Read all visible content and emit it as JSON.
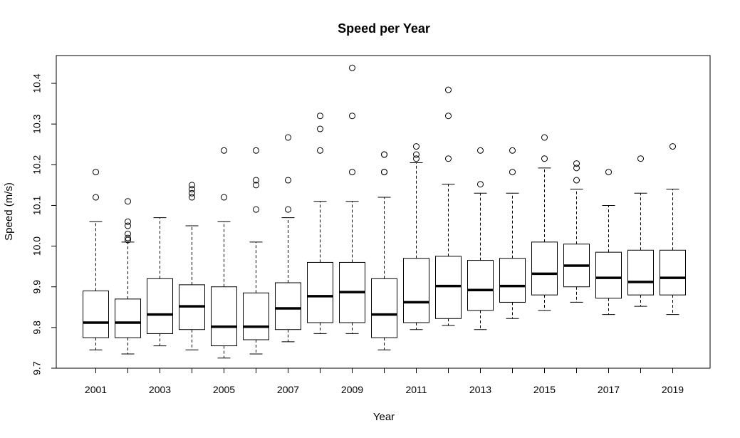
{
  "chart_data": {
    "type": "boxplot",
    "title": "Speed per Year",
    "xlabel": "Year",
    "ylabel": "Speed (m/s)",
    "ylim": [
      9.7,
      10.45
    ],
    "yticks": [
      "9.7",
      "9.8",
      "9.9",
      "10.0",
      "10.1",
      "10.2",
      "10.3",
      "10.4"
    ],
    "categories": [
      "2001",
      "2002",
      "2003",
      "2004",
      "2005",
      "2006",
      "2007",
      "2008",
      "2009",
      "2010",
      "2011",
      "2012",
      "2013",
      "2014",
      "2015",
      "2016",
      "2017",
      "2018",
      "2019"
    ],
    "xtick_labels_shown": [
      "2001",
      "2003",
      "2005",
      "2007",
      "2009",
      "2011",
      "2013",
      "2015",
      "2017",
      "2019"
    ],
    "grid": false,
    "legend": "none",
    "boxes": [
      {
        "year": "2001",
        "whisker_low": 9.745,
        "q1": 9.775,
        "median": 9.812,
        "q3": 9.89,
        "whisker_high": 10.06,
        "outliers": [
          10.12,
          10.182
        ]
      },
      {
        "year": "2002",
        "whisker_low": 9.735,
        "q1": 9.775,
        "median": 9.812,
        "q3": 9.87,
        "whisker_high": 10.01,
        "outliers": [
          10.015,
          10.02,
          10.03,
          10.05,
          10.06,
          10.11
        ]
      },
      {
        "year": "2003",
        "whisker_low": 9.755,
        "q1": 9.785,
        "median": 9.832,
        "q3": 9.92,
        "whisker_high": 10.07,
        "outliers": []
      },
      {
        "year": "2004",
        "whisker_low": 9.745,
        "q1": 9.795,
        "median": 9.852,
        "q3": 9.905,
        "whisker_high": 10.05,
        "outliers": [
          10.12,
          10.13,
          10.14,
          10.15
        ]
      },
      {
        "year": "2005",
        "whisker_low": 9.725,
        "q1": 9.755,
        "median": 9.802,
        "q3": 9.9,
        "whisker_high": 10.06,
        "outliers": [
          10.12,
          10.235
        ]
      },
      {
        "year": "2006",
        "whisker_low": 9.735,
        "q1": 9.77,
        "median": 9.802,
        "q3": 9.885,
        "whisker_high": 10.01,
        "outliers": [
          10.09,
          10.15,
          10.162,
          10.235
        ]
      },
      {
        "year": "2007",
        "whisker_low": 9.765,
        "q1": 9.795,
        "median": 9.847,
        "q3": 9.91,
        "whisker_high": 10.07,
        "outliers": [
          10.09,
          10.162,
          10.267
        ]
      },
      {
        "year": "2008",
        "whisker_low": 9.785,
        "q1": 9.812,
        "median": 9.877,
        "q3": 9.96,
        "whisker_high": 10.11,
        "outliers": [
          10.235,
          10.288,
          10.32
        ]
      },
      {
        "year": "2009",
        "whisker_low": 9.785,
        "q1": 9.812,
        "median": 9.887,
        "q3": 9.96,
        "whisker_high": 10.11,
        "outliers": [
          10.182,
          10.32,
          10.438
        ]
      },
      {
        "year": "2010",
        "whisker_low": 9.745,
        "q1": 9.775,
        "median": 9.832,
        "q3": 9.92,
        "whisker_high": 10.12,
        "outliers": [
          10.182,
          10.182,
          10.225,
          10.225
        ]
      },
      {
        "year": "2011",
        "whisker_low": 9.795,
        "q1": 9.812,
        "median": 9.862,
        "q3": 9.97,
        "whisker_high": 10.205,
        "outliers": [
          10.215,
          10.225,
          10.245
        ]
      },
      {
        "year": "2012",
        "whisker_low": 9.805,
        "q1": 9.822,
        "median": 9.902,
        "q3": 9.975,
        "whisker_high": 10.152,
        "outliers": [
          10.215,
          10.32,
          10.384
        ]
      },
      {
        "year": "2013",
        "whisker_low": 9.795,
        "q1": 9.842,
        "median": 9.892,
        "q3": 9.965,
        "whisker_high": 10.13,
        "outliers": [
          10.152,
          10.235
        ]
      },
      {
        "year": "2014",
        "whisker_low": 9.822,
        "q1": 9.862,
        "median": 9.902,
        "q3": 9.97,
        "whisker_high": 10.13,
        "outliers": [
          10.182,
          10.235
        ]
      },
      {
        "year": "2015",
        "whisker_low": 9.842,
        "q1": 9.88,
        "median": 9.932,
        "q3": 10.01,
        "whisker_high": 10.192,
        "outliers": [
          10.215,
          10.267
        ]
      },
      {
        "year": "2016",
        "whisker_low": 9.862,
        "q1": 9.9,
        "median": 9.952,
        "q3": 10.005,
        "whisker_high": 10.14,
        "outliers": [
          10.162,
          10.192,
          10.203
        ]
      },
      {
        "year": "2017",
        "whisker_low": 9.832,
        "q1": 9.872,
        "median": 9.922,
        "q3": 9.985,
        "whisker_high": 10.1,
        "outliers": [
          10.182
        ]
      },
      {
        "year": "2018",
        "whisker_low": 9.852,
        "q1": 9.88,
        "median": 9.912,
        "q3": 9.99,
        "whisker_high": 10.13,
        "outliers": [
          10.215
        ]
      },
      {
        "year": "2019",
        "whisker_low": 9.832,
        "q1": 9.88,
        "median": 9.922,
        "q3": 9.99,
        "whisker_high": 10.14,
        "outliers": [
          10.245
        ]
      }
    ]
  }
}
